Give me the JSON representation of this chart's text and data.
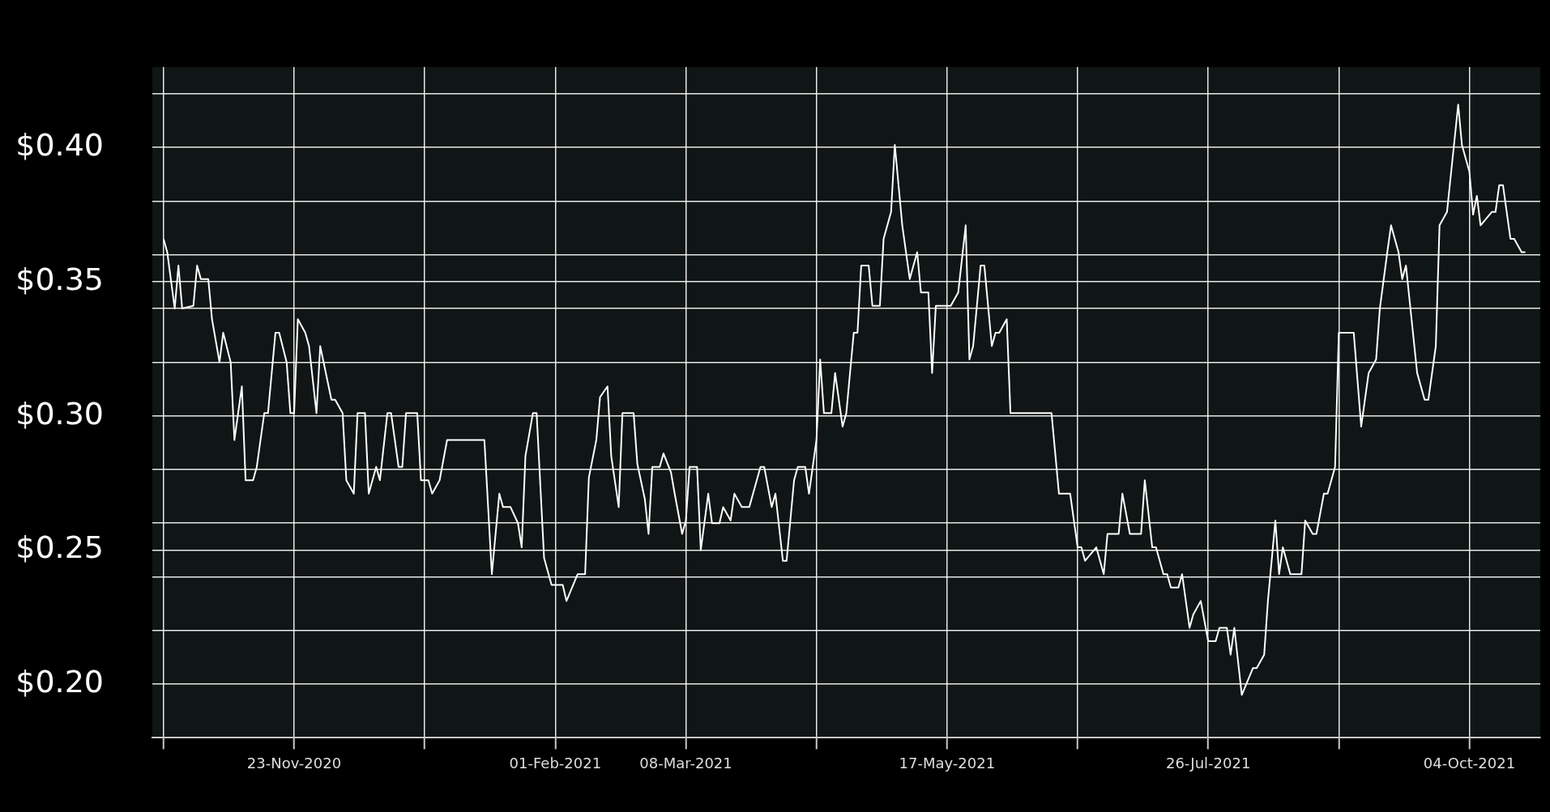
{
  "chart_data": {
    "type": "line",
    "marker": "none",
    "grid": true,
    "x": [
      "2020-10-19",
      "2020-10-20",
      "2020-10-22",
      "2020-10-23",
      "2020-10-24",
      "2020-10-27",
      "2020-10-28",
      "2020-10-29",
      "2020-10-31",
      "2020-11-01",
      "2020-11-03",
      "2020-11-04",
      "2020-11-06",
      "2020-11-07",
      "2020-11-09",
      "2020-11-10",
      "2020-11-12",
      "2020-11-13",
      "2020-11-15",
      "2020-11-16",
      "2020-11-18",
      "2020-11-19",
      "2020-11-21",
      "2020-11-22",
      "2020-11-23",
      "2020-11-24",
      "2020-11-26",
      "2020-11-27",
      "2020-11-29",
      "2020-11-30",
      "2020-12-03",
      "2020-12-04",
      "2020-12-06",
      "2020-12-07",
      "2020-12-09",
      "2020-12-10",
      "2020-12-12",
      "2020-12-13",
      "2020-12-15",
      "2020-12-16",
      "2020-12-18",
      "2020-12-19",
      "2020-12-21",
      "2020-12-22",
      "2020-12-23",
      "2020-12-26",
      "2020-12-27",
      "2020-12-29",
      "2020-12-30",
      "2021-01-01",
      "2021-01-03",
      "2021-01-13",
      "2021-01-15",
      "2021-01-17",
      "2021-01-18",
      "2021-01-20",
      "2021-01-22",
      "2021-01-23",
      "2021-01-24",
      "2021-01-26",
      "2021-01-27",
      "2021-01-29",
      "2021-01-31",
      "2021-02-03",
      "2021-02-04",
      "2021-02-07",
      "2021-02-09",
      "2021-02-10",
      "2021-02-12",
      "2021-02-13",
      "2021-02-15",
      "2021-02-16",
      "2021-02-18",
      "2021-02-19",
      "2021-02-22",
      "2021-02-23",
      "2021-02-25",
      "2021-02-26",
      "2021-02-27",
      "2021-03-01",
      "2021-03-02",
      "2021-03-04",
      "2021-03-05",
      "2021-03-07",
      "2021-03-08",
      "2021-03-09",
      "2021-03-11",
      "2021-03-12",
      "2021-03-14",
      "2021-03-15",
      "2021-03-17",
      "2021-03-18",
      "2021-03-20",
      "2021-03-21",
      "2021-03-23",
      "2021-03-25",
      "2021-03-27",
      "2021-03-28",
      "2021-03-29",
      "2021-03-31",
      "2021-04-01",
      "2021-04-03",
      "2021-04-04",
      "2021-04-06",
      "2021-04-07",
      "2021-04-09",
      "2021-04-10",
      "2021-04-12",
      "2021-04-13",
      "2021-04-14",
      "2021-04-16",
      "2021-04-17",
      "2021-04-19",
      "2021-04-20",
      "2021-04-22",
      "2021-04-23",
      "2021-04-24",
      "2021-04-26",
      "2021-04-27",
      "2021-04-29",
      "2021-04-30",
      "2021-05-02",
      "2021-05-03",
      "2021-05-05",
      "2021-05-07",
      "2021-05-09",
      "2021-05-10",
      "2021-05-12",
      "2021-05-13",
      "2021-05-14",
      "2021-05-16",
      "2021-05-18",
      "2021-05-20",
      "2021-05-22",
      "2021-05-23",
      "2021-05-24",
      "2021-05-26",
      "2021-05-27",
      "2021-05-29",
      "2021-05-30",
      "2021-05-31",
      "2021-06-02",
      "2021-06-03",
      "2021-06-14",
      "2021-06-16",
      "2021-06-19",
      "2021-06-21",
      "2021-06-22",
      "2021-06-23",
      "2021-06-26",
      "2021-06-28",
      "2021-06-29",
      "2021-07-02",
      "2021-07-03",
      "2021-07-05",
      "2021-07-08",
      "2021-07-09",
      "2021-07-11",
      "2021-07-12",
      "2021-07-14",
      "2021-07-15",
      "2021-07-16",
      "2021-07-18",
      "2021-07-19",
      "2021-07-21",
      "2021-07-22",
      "2021-07-24",
      "2021-07-26",
      "2021-07-28",
      "2021-07-29",
      "2021-07-31",
      "2021-08-01",
      "2021-08-02",
      "2021-08-04",
      "2021-08-07",
      "2021-08-08",
      "2021-08-10",
      "2021-08-11",
      "2021-08-13",
      "2021-08-14",
      "2021-08-15",
      "2021-08-17",
      "2021-08-20",
      "2021-08-21",
      "2021-08-23",
      "2021-08-24",
      "2021-08-26",
      "2021-08-27",
      "2021-08-29",
      "2021-08-30",
      "2021-09-03",
      "2021-09-05",
      "2021-09-07",
      "2021-09-09",
      "2021-09-10",
      "2021-09-12",
      "2021-09-13",
      "2021-09-15",
      "2021-09-16",
      "2021-09-17",
      "2021-09-20",
      "2021-09-22",
      "2021-09-23",
      "2021-09-25",
      "2021-09-26",
      "2021-09-28",
      "2021-10-01",
      "2021-10-02",
      "2021-10-04",
      "2021-10-05",
      "2021-10-06",
      "2021-10-07",
      "2021-10-10",
      "2021-10-11",
      "2021-10-12",
      "2021-10-13",
      "2021-10-15",
      "2021-10-16",
      "2021-10-18",
      "2021-10-19"
    ],
    "series": [
      {
        "color": "#ffffff",
        "values": [
          0.366,
          0.361,
          0.34,
          0.356,
          0.34,
          0.341,
          0.356,
          0.351,
          0.351,
          0.336,
          0.32,
          0.331,
          0.32,
          0.291,
          0.311,
          0.276,
          0.276,
          0.281,
          0.301,
          0.301,
          0.331,
          0.331,
          0.32,
          0.301,
          0.301,
          0.336,
          0.331,
          0.326,
          0.301,
          0.326,
          0.306,
          0.306,
          0.301,
          0.276,
          0.271,
          0.301,
          0.301,
          0.271,
          0.281,
          0.276,
          0.301,
          0.301,
          0.281,
          0.281,
          0.301,
          0.301,
          0.276,
          0.276,
          0.271,
          0.276,
          0.291,
          0.291,
          0.241,
          0.271,
          0.266,
          0.266,
          0.26,
          0.251,
          0.285,
          0.301,
          0.301,
          0.247,
          0.237,
          0.237,
          0.231,
          0.241,
          0.241,
          0.277,
          0.291,
          0.307,
          0.311,
          0.285,
          0.266,
          0.301,
          0.301,
          0.282,
          0.269,
          0.256,
          0.281,
          0.281,
          0.286,
          0.279,
          0.271,
          0.256,
          0.261,
          0.281,
          0.281,
          0.25,
          0.271,
          0.26,
          0.26,
          0.266,
          0.261,
          0.271,
          0.266,
          0.266,
          0.276,
          0.281,
          0.281,
          0.266,
          0.271,
          0.246,
          0.246,
          0.276,
          0.281,
          0.281,
          0.271,
          0.291,
          0.321,
          0.301,
          0.301,
          0.316,
          0.296,
          0.301,
          0.331,
          0.331,
          0.356,
          0.356,
          0.341,
          0.341,
          0.366,
          0.376,
          0.401,
          0.371,
          0.351,
          0.361,
          0.346,
          0.346,
          0.316,
          0.341,
          0.341,
          0.341,
          0.346,
          0.371,
          0.321,
          0.326,
          0.356,
          0.356,
          0.326,
          0.331,
          0.331,
          0.336,
          0.301,
          0.301,
          0.271,
          0.271,
          0.251,
          0.251,
          0.246,
          0.251,
          0.241,
          0.256,
          0.256,
          0.271,
          0.256,
          0.256,
          0.276,
          0.251,
          0.251,
          0.241,
          0.241,
          0.236,
          0.236,
          0.241,
          0.221,
          0.226,
          0.231,
          0.216,
          0.216,
          0.221,
          0.221,
          0.211,
          0.221,
          0.196,
          0.206,
          0.206,
          0.211,
          0.231,
          0.261,
          0.241,
          0.251,
          0.241,
          0.241,
          0.261,
          0.256,
          0.256,
          0.271,
          0.271,
          0.281,
          0.331,
          0.331,
          0.296,
          0.316,
          0.321,
          0.34,
          0.361,
          0.371,
          0.361,
          0.351,
          0.356,
          0.316,
          0.306,
          0.306,
          0.326,
          0.371,
          0.376,
          0.416,
          0.401,
          0.391,
          0.375,
          0.382,
          0.371,
          0.376,
          0.376,
          0.386,
          0.386,
          0.366,
          0.366,
          0.361,
          0.361
        ]
      }
    ],
    "xlim": [
      "2020-10-16",
      "2021-10-23"
    ],
    "xticks": [
      {
        "value": "2020-10-19",
        "label": null
      },
      {
        "value": "2020-11-23",
        "label": "23-Nov-2020"
      },
      {
        "value": "2020-12-28",
        "label": null
      },
      {
        "value": "2021-02-01",
        "label": "01-Feb-2021"
      },
      {
        "value": "2021-03-08",
        "label": "08-Mar-2021"
      },
      {
        "value": "2021-04-12",
        "label": null
      },
      {
        "value": "2021-05-17",
        "label": "17-May-2021"
      },
      {
        "value": "2021-06-21",
        "label": null
      },
      {
        "value": "2021-07-26",
        "label": "26-Jul-2021"
      },
      {
        "value": "2021-08-30",
        "label": null
      },
      {
        "value": "2021-10-04",
        "label": "04-Oct-2021"
      }
    ],
    "ylim": [
      0.18,
      0.43
    ],
    "yticks": [
      {
        "value": 0.2,
        "label": "$0.20"
      },
      {
        "value": 0.22,
        "label": null
      },
      {
        "value": 0.24,
        "label": null
      },
      {
        "value": 0.25,
        "label": "$0.25"
      },
      {
        "value": 0.26,
        "label": null
      },
      {
        "value": 0.28,
        "label": null
      },
      {
        "value": 0.3,
        "label": "$0.30"
      },
      {
        "value": 0.32,
        "label": null
      },
      {
        "value": 0.34,
        "label": null
      },
      {
        "value": 0.35,
        "label": "$0.35"
      },
      {
        "value": 0.36,
        "label": null
      },
      {
        "value": 0.38,
        "label": null
      },
      {
        "value": 0.4,
        "label": "$0.40"
      },
      {
        "value": 0.42,
        "label": null
      }
    ]
  }
}
